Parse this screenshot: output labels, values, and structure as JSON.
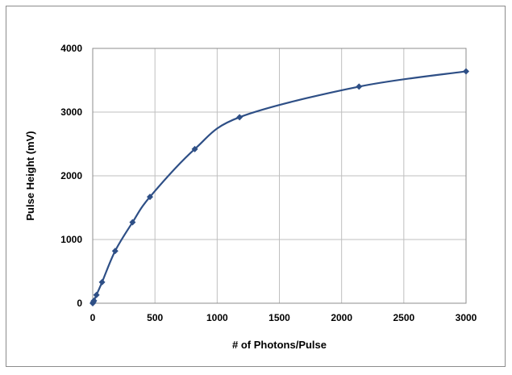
{
  "chart_data": {
    "type": "line",
    "title": "",
    "xlabel": "# of Photons/Pulse",
    "ylabel": "Pulse Height (mV)",
    "xlim": [
      0,
      3000
    ],
    "ylim": [
      0,
      4000
    ],
    "xticks": [
      0,
      500,
      1000,
      1500,
      2000,
      2500,
      3000
    ],
    "yticks": [
      0,
      1000,
      2000,
      3000,
      4000
    ],
    "xtick_labels": [
      "0",
      "500",
      "1000",
      "1500",
      "2000",
      "2500",
      "3000"
    ],
    "ytick_labels": [
      "0",
      "1000",
      "2000",
      "3000",
      "4000"
    ],
    "grid": true,
    "legend": "none",
    "colors": {
      "series": "#2e4f86",
      "grid": "#bfbfbf",
      "frame": "#8c8c8c"
    },
    "smooth": true,
    "marker": "diamond",
    "series": [
      {
        "x": [
          0,
          5,
          10,
          30,
          75,
          180,
          320,
          460,
          820,
          1180,
          2140,
          3000
        ],
        "y": [
          0,
          20,
          40,
          130,
          330,
          820,
          1270,
          1670,
          2420,
          2920,
          3400,
          3640
        ]
      }
    ]
  }
}
